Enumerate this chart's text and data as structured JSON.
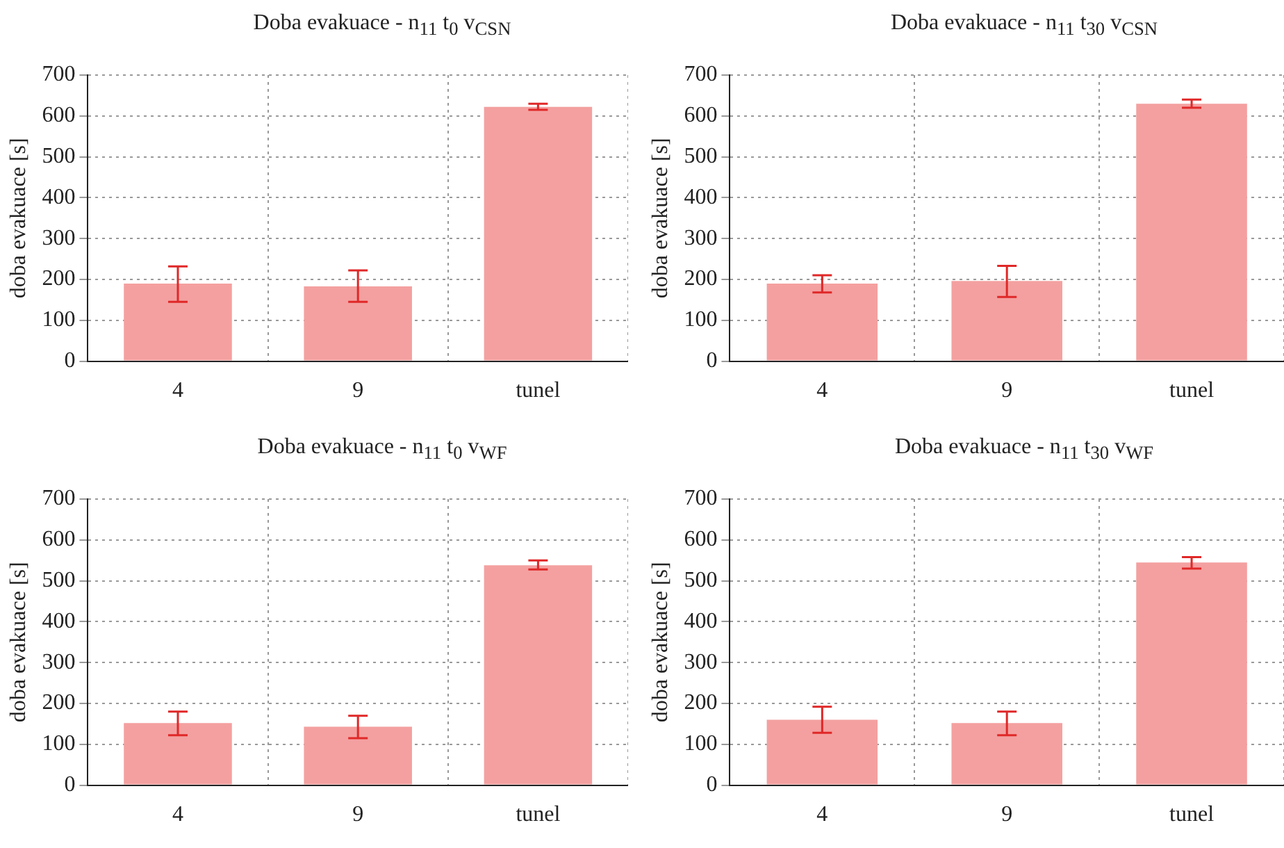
{
  "chart_data": [
    {
      "type": "bar",
      "title": "Doba evakuace - n$_{11}$ t$_{0}$ v$_{CSN}$",
      "ylabel": "doba evakuace [s]",
      "categories": [
        "4",
        "9",
        "tunel"
      ],
      "values": [
        190,
        183,
        622
      ],
      "errors": [
        [
          145,
          232
        ],
        [
          145,
          222
        ],
        [
          615,
          630
        ]
      ],
      "color": "#f4a0a0",
      "ylim": [
        0,
        700
      ],
      "yticks": [
        0,
        100,
        200,
        300,
        400,
        500,
        600,
        700
      ],
      "grid": true
    },
    {
      "type": "bar",
      "title": "Doba evakuace - n$_{11}$ t$_{30}$ v$_{CSN}$",
      "ylabel": "doba evakuace [s]",
      "categories": [
        "4",
        "9",
        "tunel"
      ],
      "values": [
        190,
        196,
        630
      ],
      "errors": [
        [
          168,
          210
        ],
        [
          157,
          233
        ],
        [
          620,
          640
        ]
      ],
      "color": "#f4a0a0",
      "ylim": [
        0,
        700
      ],
      "yticks": [
        0,
        100,
        200,
        300,
        400,
        500,
        600,
        700
      ],
      "grid": true
    },
    {
      "type": "bar",
      "title": "Doba evakuace - n$_{11}$ t$_{0}$ v$_{WF}$",
      "ylabel": "doba evakuace [s]",
      "categories": [
        "4",
        "9",
        "tunel"
      ],
      "values": [
        152,
        143,
        538
      ],
      "errors": [
        [
          122,
          180
        ],
        [
          115,
          170
        ],
        [
          528,
          550
        ]
      ],
      "color": "#f4a0a0",
      "ylim": [
        0,
        700
      ],
      "yticks": [
        0,
        100,
        200,
        300,
        400,
        500,
        600,
        700
      ],
      "grid": true
    },
    {
      "type": "bar",
      "title": "Doba evakuace - n$_{11}$ t$_{30}$ v$_{WF}$",
      "ylabel": "doba evakuace [s]",
      "categories": [
        "4",
        "9",
        "tunel"
      ],
      "values": [
        160,
        152,
        545
      ],
      "errors": [
        [
          128,
          192
        ],
        [
          122,
          180
        ],
        [
          530,
          558
        ]
      ],
      "color": "#f4a0a0",
      "ylim": [
        0,
        700
      ],
      "yticks": [
        0,
        100,
        200,
        300,
        400,
        500,
        600,
        700
      ],
      "grid": true
    }
  ]
}
